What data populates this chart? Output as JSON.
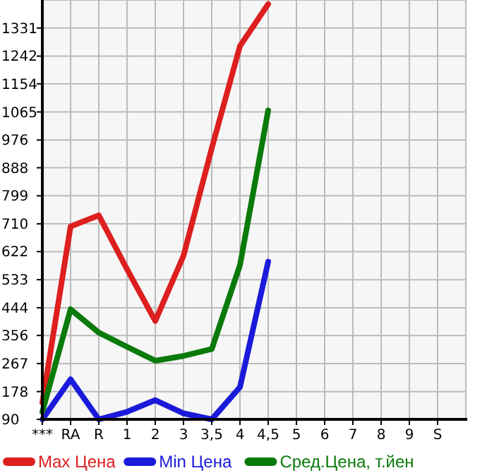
{
  "chart_data": {
    "type": "line",
    "categories": [
      "***",
      "RA",
      "R",
      "1",
      "2",
      "3",
      "3,5",
      "4",
      "4,5",
      "5",
      "6",
      "7",
      "8",
      "9",
      "S"
    ],
    "ylim": [
      90,
      1420
    ],
    "yticks": [
      90,
      178,
      267,
      356,
      444,
      533,
      622,
      710,
      799,
      888,
      976,
      1065,
      1154,
      1242,
      1331
    ],
    "grid": true,
    "legend": "bottom",
    "marker": "none",
    "series": [
      {
        "name": "Max Цена",
        "color": "#dd1f1f",
        "values": [
          143,
          702,
          737,
          566,
          402,
          609,
          950,
          1274,
          1407,
          null,
          null,
          null,
          null,
          null,
          null
        ]
      },
      {
        "name": "Min Цена",
        "color": "#1a1adb",
        "values": [
          90,
          217,
          90,
          114,
          151,
          109,
          90,
          192,
          590,
          null,
          null,
          null,
          null,
          null,
          null
        ]
      },
      {
        "name": "Сред.Цена, т.йен",
        "color": "#0a7a0a",
        "values": [
          114,
          439,
          365,
          320,
          276,
          291,
          313,
          579,
          1070,
          null,
          null,
          null,
          null,
          null,
          null
        ]
      }
    ]
  }
}
